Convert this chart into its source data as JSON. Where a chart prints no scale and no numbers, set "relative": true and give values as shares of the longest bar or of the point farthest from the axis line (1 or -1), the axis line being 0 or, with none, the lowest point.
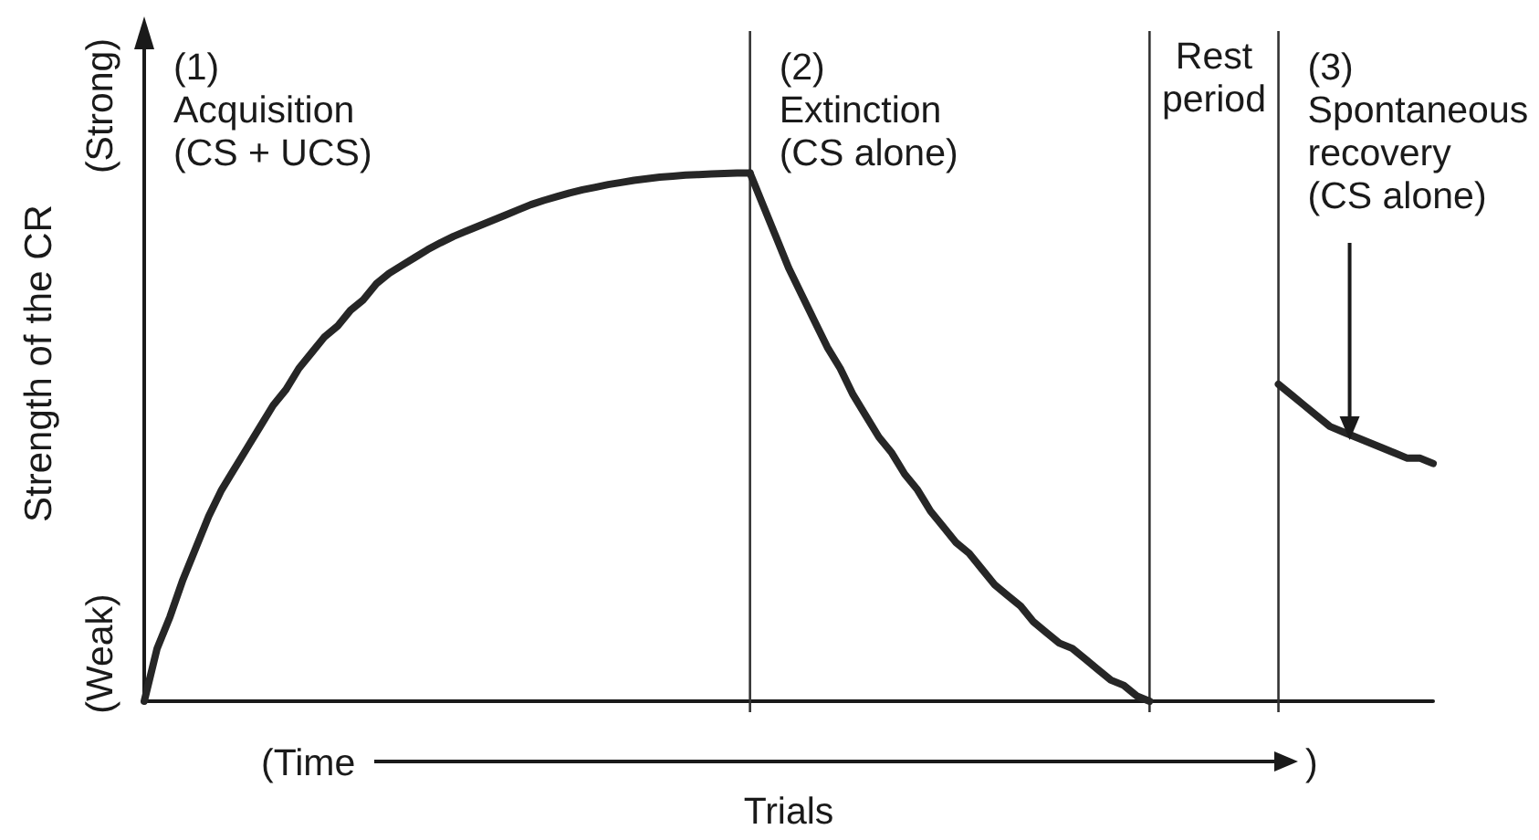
{
  "chart_data": {
    "type": "line",
    "xlabel": "Trials",
    "ylabel": "Strength of the CR",
    "annotations": [
      "(1)\nAcquisition\n(CS + UCS)",
      "(2)\nExtinction\n(CS alone)",
      "Rest\nperiod",
      "(3)\nSpontaneous\nrecovery\n(CS alone)",
      "(Strong)",
      "(Weak)",
      "(Time )"
    ],
    "categories": [
      null,
      null,
      null,
      null,
      null,
      null,
      null,
      null,
      null,
      null,
      null,
      null,
      null,
      null,
      null,
      null,
      null,
      null,
      null,
      null,
      null,
      null,
      null,
      null,
      null,
      null,
      null,
      null,
      null,
      null,
      null,
      null,
      null,
      null,
      null,
      null,
      null,
      null,
      null,
      null,
      null,
      null,
      null,
      null,
      null,
      null,
      null,
      null,
      null,
      null,
      null,
      null,
      null,
      null,
      null,
      null,
      null,
      null,
      null,
      null,
      null,
      null,
      null,
      null,
      null,
      null,
      null,
      null,
      null,
      null,
      null,
      null,
      null,
      null,
      null,
      null,
      null,
      null,
      null,
      null,
      null,
      null,
      null,
      null,
      null,
      null,
      null,
      null,
      null,
      null,
      null,
      null,
      null,
      null,
      null,
      null,
      null,
      null,
      null,
      null,
      null
    ],
    "series": [
      {
        "color": "#262626",
        "values": [
          0,
          0.1,
          0.16,
          0.23,
          0.29,
          0.35,
          0.4,
          0.44,
          0.48,
          0.52,
          0.56,
          0.59,
          0.63,
          0.66,
          0.69,
          0.71,
          0.74,
          0.76,
          0.79,
          0.81,
          0.825,
          0.84,
          0.855,
          0.868,
          0.88,
          0.89,
          0.9,
          0.91,
          0.92,
          0.93,
          0.94,
          0.948,
          0.955,
          0.962,
          0.968,
          0.973,
          0.978,
          0.982,
          0.986,
          0.989,
          0.992,
          0.994,
          0.996,
          0.997,
          0.998,
          0.999,
          1,
          1,
          null,
          null,
          null,
          null,
          null,
          null,
          null,
          null,
          null,
          null,
          null,
          null,
          null,
          null,
          null,
          null,
          null,
          null,
          null,
          null,
          null,
          null,
          null,
          null,
          null,
          null,
          null,
          null,
          null,
          null,
          null,
          null,
          null,
          null,
          null,
          null,
          null,
          null,
          null,
          null,
          null,
          null,
          null,
          null,
          null,
          null,
          null,
          null,
          null,
          null,
          null,
          null,
          null
        ]
      },
      {
        "color": "#262626",
        "values": [
          null,
          null,
          null,
          null,
          null,
          null,
          null,
          null,
          null,
          null,
          null,
          null,
          null,
          null,
          null,
          null,
          null,
          null,
          null,
          null,
          null,
          null,
          null,
          null,
          null,
          null,
          null,
          null,
          null,
          null,
          null,
          null,
          null,
          null,
          null,
          null,
          null,
          null,
          null,
          null,
          null,
          null,
          null,
          null,
          null,
          null,
          null,
          1,
          0.94,
          0.88,
          0.82,
          0.77,
          0.72,
          0.67,
          0.63,
          0.58,
          0.54,
          0.5,
          0.47,
          0.43,
          0.4,
          0.36,
          0.33,
          0.3,
          0.28,
          0.25,
          0.22,
          0.2,
          0.18,
          0.15,
          0.13,
          0.11,
          0.1,
          0.08,
          0.06,
          0.04,
          0.03,
          0.01,
          0,
          null,
          null,
          null,
          null,
          null,
          null,
          null,
          null,
          null,
          null,
          null,
          null,
          null,
          null,
          null,
          null,
          null,
          null,
          null,
          null,
          null,
          null
        ]
      },
      {
        "color": "#262626",
        "values": [
          null,
          null,
          null,
          null,
          null,
          null,
          null,
          null,
          null,
          null,
          null,
          null,
          null,
          null,
          null,
          null,
          null,
          null,
          null,
          null,
          null,
          null,
          null,
          null,
          null,
          null,
          null,
          null,
          null,
          null,
          null,
          null,
          null,
          null,
          null,
          null,
          null,
          null,
          null,
          null,
          null,
          null,
          null,
          null,
          null,
          null,
          null,
          null,
          null,
          null,
          null,
          null,
          null,
          null,
          null,
          null,
          null,
          null,
          null,
          null,
          null,
          null,
          null,
          null,
          null,
          null,
          null,
          null,
          null,
          null,
          null,
          null,
          null,
          null,
          null,
          null,
          null,
          null,
          null,
          null,
          null,
          null,
          null,
          null,
          null,
          null,
          null,
          null,
          0.6,
          0.58,
          0.56,
          0.54,
          0.52,
          0.51,
          0.5,
          0.49,
          0.48,
          0.47,
          0.46,
          0.46,
          0.45
        ]
      }
    ],
    "relative": true,
    "marker": "none",
    "grid": "x"
  }
}
